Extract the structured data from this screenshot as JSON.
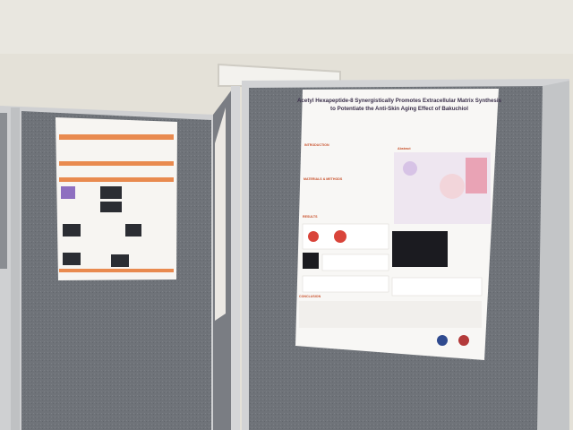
{
  "poster": {
    "title_lines": [
      "Acetyl Hexapeptide-8 Synergistically Promotes Extracellular Matrix Synthesis",
      "to Potentiate the Anti-Skin Aging Effect of Bakuchiol"
    ],
    "sections": [
      "INTRODUCTION",
      "Abstract",
      "MATERIALS & METHODS",
      "RESULTS",
      "CONCLUSION"
    ]
  }
}
